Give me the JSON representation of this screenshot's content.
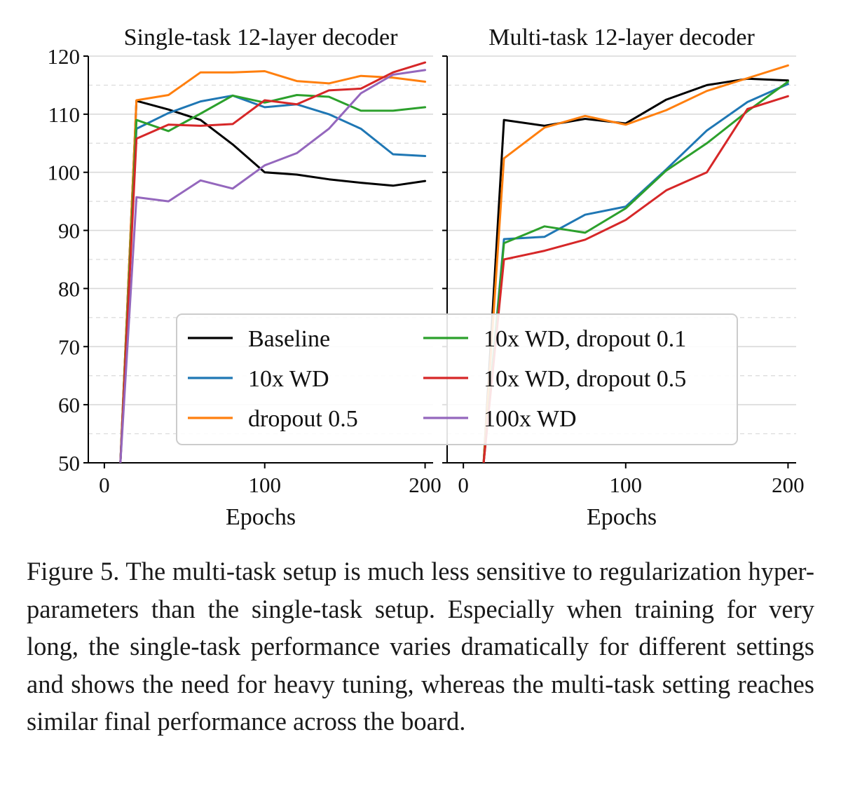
{
  "chart_data": [
    {
      "type": "line",
      "title": "Single-task 12-layer decoder",
      "xlabel": "Epochs",
      "ylabel": "",
      "xlim": [
        -10,
        205
      ],
      "ylim": [
        50,
        120
      ],
      "xticks": [
        "0",
        "100",
        "200"
      ],
      "yticks": [
        "50",
        "60",
        "70",
        "80",
        "90",
        "100",
        "110",
        "120"
      ],
      "grid": "horizontal dashed",
      "series": [
        {
          "name": "Baseline",
          "color": "#000000",
          "x": [
            10,
            20,
            40,
            60,
            80,
            100,
            120,
            140,
            160,
            180,
            200
          ],
          "y": [
            50,
            112.3,
            110.8,
            109,
            104.8,
            100,
            99.6,
            98.8,
            98.2,
            97.7,
            98.5
          ]
        },
        {
          "name": "10x WD",
          "color": "#1f77b4",
          "x": [
            10,
            20,
            40,
            60,
            80,
            100,
            120,
            140,
            160,
            180,
            200
          ],
          "y": [
            50,
            107.5,
            110.2,
            112.2,
            113.2,
            111.2,
            111.7,
            110,
            107.5,
            103.1,
            102.8
          ]
        },
        {
          "name": "dropout 0.5",
          "color": "#ff7f0e",
          "x": [
            10,
            20,
            40,
            60,
            80,
            100,
            120,
            140,
            160,
            180,
            200
          ],
          "y": [
            50,
            112.4,
            113.3,
            117.2,
            117.2,
            117.4,
            115.7,
            115.3,
            116.6,
            116.3,
            115.6
          ]
        },
        {
          "name": "10x WD, dropout 0.1",
          "color": "#2ca02c",
          "x": [
            10,
            20,
            40,
            60,
            80,
            100,
            120,
            140,
            160,
            180,
            200
          ],
          "y": [
            50,
            109,
            107.1,
            110.1,
            113.2,
            112,
            113.3,
            113,
            110.6,
            110.6,
            111.2
          ]
        },
        {
          "name": "10x WD, dropout 0.5",
          "color": "#d62728",
          "x": [
            10,
            20,
            40,
            60,
            80,
            100,
            120,
            140,
            160,
            180,
            200
          ],
          "y": [
            50,
            105.8,
            108.2,
            108,
            108.3,
            112.4,
            111.7,
            114.1,
            114.4,
            117.2,
            118.9
          ]
        },
        {
          "name": "100x WD",
          "color": "#9467bd",
          "x": [
            10,
            20,
            40,
            60,
            80,
            100,
            120,
            140,
            160,
            180,
            200
          ],
          "y": [
            50,
            95.7,
            95,
            98.6,
            97.2,
            101.2,
            103.3,
            107.5,
            113.6,
            116.8,
            117.6
          ]
        }
      ]
    },
    {
      "type": "line",
      "title": "Multi-task 12-layer decoder",
      "xlabel": "Epochs",
      "ylabel": "",
      "xlim": [
        -10,
        205
      ],
      "ylim": [
        50,
        120
      ],
      "xticks": [
        "0",
        "100",
        "200"
      ],
      "yticks": [],
      "grid": "horizontal dashed",
      "series": [
        {
          "name": "Baseline",
          "color": "#000000",
          "x": [
            12.5,
            25,
            50,
            75,
            100,
            125,
            150,
            175,
            200
          ],
          "y": [
            50,
            109,
            108,
            109.2,
            108.4,
            112.5,
            115,
            116.1,
            115.8
          ]
        },
        {
          "name": "10x WD",
          "color": "#1f77b4",
          "x": [
            12.5,
            25,
            50,
            75,
            100,
            125,
            150,
            175,
            200
          ],
          "y": [
            50,
            88.5,
            88.9,
            92.7,
            94.1,
            100.5,
            107.2,
            112.1,
            115.2
          ]
        },
        {
          "name": "dropout 0.5",
          "color": "#ff7f0e",
          "x": [
            12.5,
            25,
            50,
            75,
            100,
            125,
            150,
            175,
            200
          ],
          "y": [
            50,
            102.4,
            107.7,
            109.7,
            108.2,
            110.7,
            114,
            116.2,
            118.4
          ]
        },
        {
          "name": "10x WD, dropout 0.1",
          "color": "#2ca02c",
          "x": [
            12.5,
            25,
            50,
            75,
            100,
            125,
            150,
            175,
            200
          ],
          "y": [
            50,
            87.8,
            90.7,
            89.6,
            93.8,
            100.3,
            105,
            110.5,
            115.6
          ]
        },
        {
          "name": "10x WD, dropout 0.5",
          "color": "#d62728",
          "x": [
            12.5,
            25,
            50,
            75,
            100,
            125,
            150,
            175,
            200
          ],
          "y": [
            50,
            85,
            86.5,
            88.4,
            91.8,
            96.9,
            100,
            110.9,
            113.1
          ]
        }
      ]
    }
  ],
  "legend": {
    "placement": "lower-center",
    "entries": [
      {
        "label": "Baseline",
        "color": "#000000"
      },
      {
        "label": "10x WD",
        "color": "#1f77b4"
      },
      {
        "label": "dropout 0.5",
        "color": "#ff7f0e"
      },
      {
        "label": "10x WD, dropout 0.1",
        "color": "#2ca02c"
      },
      {
        "label": "10x WD, dropout 0.5",
        "color": "#d62728"
      },
      {
        "label": "100x WD",
        "color": "#9467bd"
      }
    ]
  },
  "caption": "Figure 5. The multi-task setup is much less sensitive to regularization hyper-parameters than the single-task setup. Especially when training for very long, the single-task performance varies dramatically for different settings and shows the need for heavy tuning, whereas the multi-task setting reaches similar final performance across the board."
}
